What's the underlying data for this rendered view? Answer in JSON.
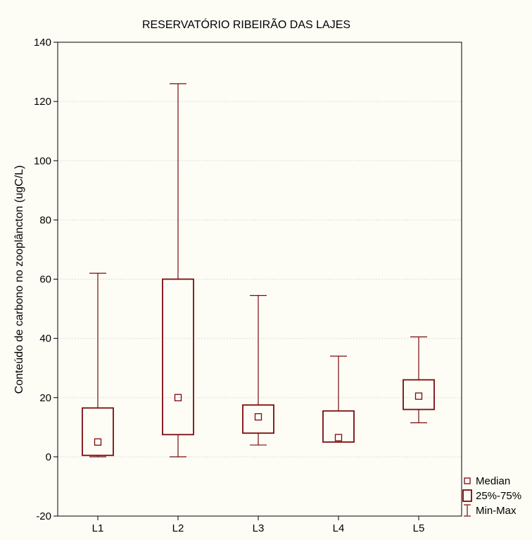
{
  "chart_data": {
    "type": "box",
    "title": "RESERVATÓRIO RIBEIRÃO DAS LAJES",
    "xlabel": "",
    "ylabel": "Conteúdo de carbono no zooplâncton (ugC/L)",
    "ylim": [
      -20,
      140
    ],
    "yticks": [
      -20,
      0,
      20,
      40,
      60,
      80,
      100,
      120,
      140
    ],
    "grid": true,
    "legend_position": "bottom-right",
    "colors": {
      "box": "#7a0a0a",
      "grid": "#dcdcdc",
      "background": "#fdfdf6"
    },
    "categories": [
      "L1",
      "L2",
      "L3",
      "L4",
      "L5"
    ],
    "boxes": [
      {
        "label": "L1",
        "min": 0,
        "q1": 0.5,
        "median": 5,
        "q3": 16.5,
        "max": 62
      },
      {
        "label": "L2",
        "min": 0,
        "q1": 7.5,
        "median": 20,
        "q3": 60,
        "max": 126
      },
      {
        "label": "L3",
        "min": 4,
        "q1": 8,
        "median": 13.5,
        "q3": 17.5,
        "max": 54.5
      },
      {
        "label": "L4",
        "min": 5,
        "q1": 5,
        "median": 6.5,
        "q3": 15.5,
        "max": 34
      },
      {
        "label": "L5",
        "min": 11.5,
        "q1": 16,
        "median": 20.5,
        "q3": 26,
        "max": 40.5
      }
    ],
    "legend": [
      {
        "key": "median",
        "label": "Median"
      },
      {
        "key": "box",
        "label": "25%-75%"
      },
      {
        "key": "whisker",
        "label": "Min-Max"
      }
    ]
  }
}
